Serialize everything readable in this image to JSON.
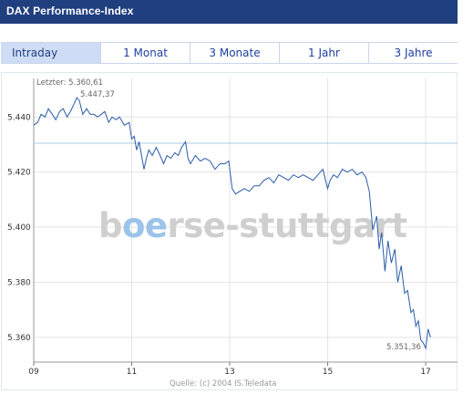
{
  "header": {
    "title": "DAX Performance-Index"
  },
  "tabs": [
    {
      "label": "Intraday",
      "active": true
    },
    {
      "label": "1 Monat",
      "active": false
    },
    {
      "label": "3 Monate",
      "active": false
    },
    {
      "label": "1 Jahr",
      "active": false
    },
    {
      "label": "3 Jahre",
      "active": false
    }
  ],
  "chart_data": {
    "type": "line",
    "title": "",
    "xlabel": "",
    "ylabel": "",
    "x_ticks": [
      "09",
      "11",
      "13",
      "15",
      "17"
    ],
    "x_tick_values": [
      9,
      11,
      13,
      15,
      17
    ],
    "y_ticks": [
      "5.440",
      "5.420",
      "5.400",
      "5.380",
      "5.360"
    ],
    "y_tick_values": [
      5440,
      5420,
      5400,
      5380,
      5360
    ],
    "xlim": [
      9,
      17.65
    ],
    "ylim": [
      5351,
      5454
    ],
    "grid": true,
    "reference_line": {
      "value": 5430.5,
      "color": "#a9cde9"
    },
    "line_color": "#2a5ca8",
    "annotations": {
      "last_label": "Letzter: 5.360,61",
      "high_label": "5.447,37",
      "low_label": "5.351,36"
    },
    "watermark": {
      "text_dark": "b",
      "text_accent": "oe",
      "text_rest": "rse-stuttgart",
      "accent_color": "#9cc3ea"
    },
    "source": "Quelle: (c) 2004 IS.Teledata",
    "series": [
      {
        "values": [
          [
            9.0,
            5437
          ],
          [
            9.08,
            5438
          ],
          [
            9.15,
            5441
          ],
          [
            9.23,
            5440
          ],
          [
            9.3,
            5443
          ],
          [
            9.38,
            5441
          ],
          [
            9.45,
            5439
          ],
          [
            9.53,
            5442
          ],
          [
            9.6,
            5443
          ],
          [
            9.68,
            5440
          ],
          [
            9.75,
            5442
          ],
          [
            9.83,
            5445
          ],
          [
            9.88,
            5447
          ],
          [
            9.93,
            5446
          ],
          [
            10.0,
            5441
          ],
          [
            10.08,
            5443
          ],
          [
            10.15,
            5441
          ],
          [
            10.23,
            5441
          ],
          [
            10.3,
            5440
          ],
          [
            10.38,
            5441
          ],
          [
            10.45,
            5442
          ],
          [
            10.53,
            5438
          ],
          [
            10.6,
            5440
          ],
          [
            10.68,
            5439
          ],
          [
            10.75,
            5440
          ],
          [
            10.85,
            5437
          ],
          [
            10.95,
            5438
          ],
          [
            11.0,
            5432
          ],
          [
            11.05,
            5433
          ],
          [
            11.1,
            5428
          ],
          [
            11.15,
            5431
          ],
          [
            11.2,
            5426
          ],
          [
            11.25,
            5421
          ],
          [
            11.3,
            5425
          ],
          [
            11.35,
            5428
          ],
          [
            11.42,
            5426
          ],
          [
            11.5,
            5429
          ],
          [
            11.58,
            5426
          ],
          [
            11.65,
            5423
          ],
          [
            11.72,
            5426
          ],
          [
            11.8,
            5425
          ],
          [
            11.88,
            5427
          ],
          [
            11.95,
            5426
          ],
          [
            12.02,
            5429
          ],
          [
            12.1,
            5431
          ],
          [
            12.15,
            5425
          ],
          [
            12.2,
            5423
          ],
          [
            12.3,
            5426
          ],
          [
            12.4,
            5424
          ],
          [
            12.5,
            5425
          ],
          [
            12.6,
            5424
          ],
          [
            12.7,
            5421
          ],
          [
            12.8,
            5423
          ],
          [
            12.9,
            5423
          ],
          [
            12.98,
            5424
          ],
          [
            13.05,
            5414
          ],
          [
            13.12,
            5412
          ],
          [
            13.2,
            5413
          ],
          [
            13.3,
            5414
          ],
          [
            13.4,
            5413
          ],
          [
            13.5,
            5415
          ],
          [
            13.6,
            5415
          ],
          [
            13.7,
            5417
          ],
          [
            13.8,
            5418
          ],
          [
            13.9,
            5416
          ],
          [
            14.0,
            5419
          ],
          [
            14.1,
            5418
          ],
          [
            14.2,
            5417
          ],
          [
            14.3,
            5419
          ],
          [
            14.4,
            5418
          ],
          [
            14.5,
            5419
          ],
          [
            14.6,
            5418
          ],
          [
            14.7,
            5417
          ],
          [
            14.8,
            5419
          ],
          [
            14.9,
            5421
          ],
          [
            15.0,
            5414
          ],
          [
            15.05,
            5417
          ],
          [
            15.12,
            5419
          ],
          [
            15.2,
            5418
          ],
          [
            15.3,
            5421
          ],
          [
            15.4,
            5420
          ],
          [
            15.5,
            5421
          ],
          [
            15.6,
            5419
          ],
          [
            15.7,
            5420
          ],
          [
            15.78,
            5418
          ],
          [
            15.85,
            5413
          ],
          [
            15.92,
            5399
          ],
          [
            16.0,
            5404
          ],
          [
            16.05,
            5392
          ],
          [
            16.1,
            5398
          ],
          [
            16.17,
            5384
          ],
          [
            16.23,
            5395
          ],
          [
            16.3,
            5387
          ],
          [
            16.37,
            5392
          ],
          [
            16.43,
            5380
          ],
          [
            16.5,
            5386
          ],
          [
            16.57,
            5376
          ],
          [
            16.63,
            5377
          ],
          [
            16.7,
            5369
          ],
          [
            16.75,
            5370
          ],
          [
            16.8,
            5364
          ],
          [
            16.85,
            5366
          ],
          [
            16.9,
            5359
          ],
          [
            16.95,
            5358
          ],
          [
            17.0,
            5356
          ],
          [
            17.05,
            5363
          ],
          [
            17.1,
            5360
          ]
        ]
      }
    ]
  }
}
